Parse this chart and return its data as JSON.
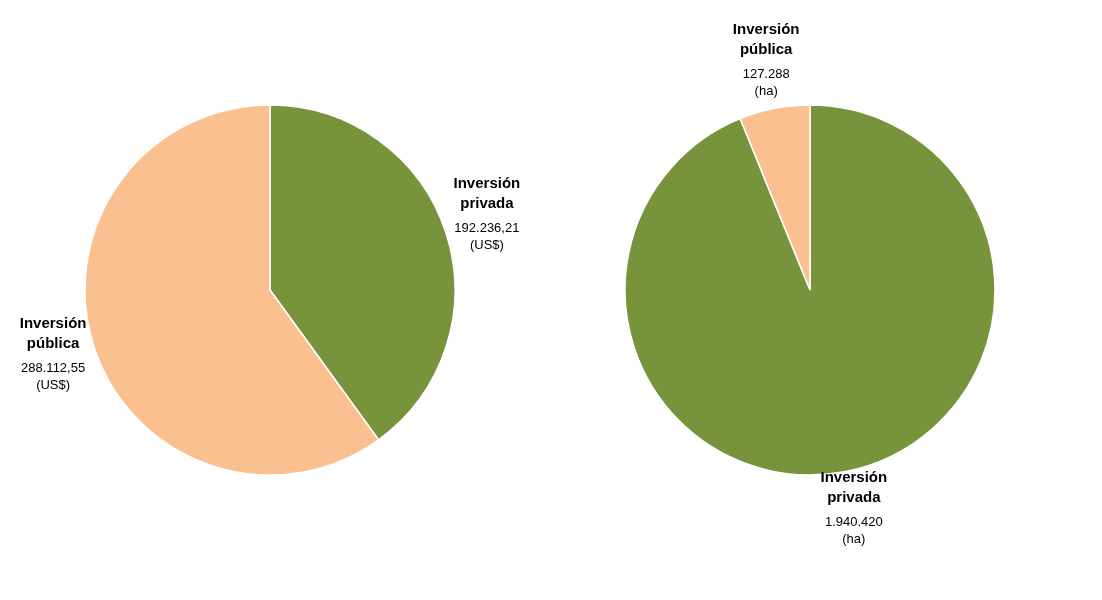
{
  "chart_data": [
    {
      "type": "pie",
      "categories": [
        "Inversión privada",
        "Inversión pública"
      ],
      "values": [
        192236.21,
        288112.55
      ],
      "value_labels": [
        "192.236,21 (US$)",
        "288.112,55 (US$)"
      ],
      "colors": [
        "#77933c",
        "#fac090"
      ]
    },
    {
      "type": "pie",
      "categories": [
        "Inversión privada",
        "Inversión pública"
      ],
      "values": [
        1940420,
        127288
      ],
      "value_labels": [
        "1.940.420 (ha)",
        "127.288 (ha)"
      ],
      "colors": [
        "#77933c",
        "#fac090"
      ]
    }
  ]
}
